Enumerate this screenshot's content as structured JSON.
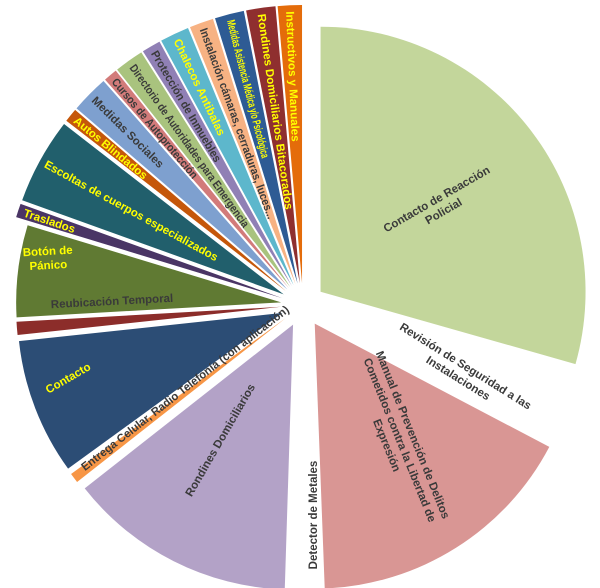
{
  "chart_data": {
    "type": "pie",
    "title": "",
    "exploded": true,
    "value_unit": "estimated percent share",
    "slices": [
      {
        "label": "Contacto de Reacción\nPolicial",
        "value": 29.4,
        "color": "#c3d69b",
        "text_color": "#3a3a3a"
      },
      {
        "label": "Revisión de Seguridad a las\nInstalaciones",
        "value": 3.3,
        "color": "#ffffff",
        "text_color": "#3a3a3a"
      },
      {
        "label": "Manual de Prevención de Delitos\nCometidos contra la Libertad de\nExpresión",
        "value": 16.7,
        "color": "#d99694",
        "text_color": "#3a3a3a"
      },
      {
        "label": "Detector de Metales",
        "value": 1.1,
        "color": "#ffffff",
        "text_color": "#3a3a3a"
      },
      {
        "label": "Rondines Domiciliarios",
        "value": 13.9,
        "color": "#b3a2c7",
        "text_color": "#3a3a3a"
      },
      {
        "label": "Entrega Celular, Radio Telefonía (con aplicación)",
        "value": 0.6,
        "color": "#f79646",
        "text_color": "#3a3a3a"
      },
      {
        "label": "Contacto",
        "value": 8.3,
        "color": "#2c4d75",
        "text_color": "#ffff00"
      },
      {
        "label": "Reubicación Temporal",
        "value": 0.8,
        "color": "#8c2d2a",
        "text_color": "#3a3a3a"
      },
      {
        "label": "Botón de\nPánico",
        "value": 5.6,
        "color": "#607a33",
        "text_color": "#ffff00"
      },
      {
        "label": "Traslados",
        "value": 0.8,
        "color": "#4a3565",
        "text_color": "#ffff00"
      },
      {
        "label": "Escoltas de cuerpos especializados",
        "value": 5.0,
        "color": "#215f6c",
        "text_color": "#ffff00"
      },
      {
        "label": "Autos Blindados",
        "value": 0.8,
        "color": "#c5570a",
        "text_color": "#ffff00"
      },
      {
        "label": "Medidas Sociales",
        "value": 2.2,
        "color": "#7ea0cf",
        "text_color": "#3a3a3a"
      },
      {
        "label": "Cursos de Autoprotección",
        "value": 0.8,
        "color": "#d27b7a",
        "text_color": "#3a3a3a"
      },
      {
        "label": "Directorio de Autoridades para Emergencia",
        "value": 1.7,
        "color": "#a9c37e",
        "text_color": "#3a3a3a"
      },
      {
        "label": "Protección de Inmuebles",
        "value": 1.1,
        "color": "#9080b5",
        "text_color": "#3a3a3a"
      },
      {
        "label": "Chalecos Antibalas",
        "value": 1.7,
        "color": "#5db7cc",
        "text_color": "#ffff00"
      },
      {
        "label": "Instalación cámaras, cerraduras, luces...",
        "value": 1.4,
        "color": "#f7b283",
        "text_color": "#3a3a3a"
      },
      {
        "label": "Medidas Asistencia Médica y/o Psicológica",
        "value": 1.7,
        "color": "#2e5b94",
        "text_color": "#ffff00"
      },
      {
        "label": "Rondines Domiciliarios Bitacorados",
        "value": 1.7,
        "color": "#8f2f2f",
        "text_color": "#ffff00"
      },
      {
        "label": "Instructivos y Manuales",
        "value": 1.4,
        "color": "#e46c0a",
        "text_color": "#ffff00"
      }
    ]
  }
}
